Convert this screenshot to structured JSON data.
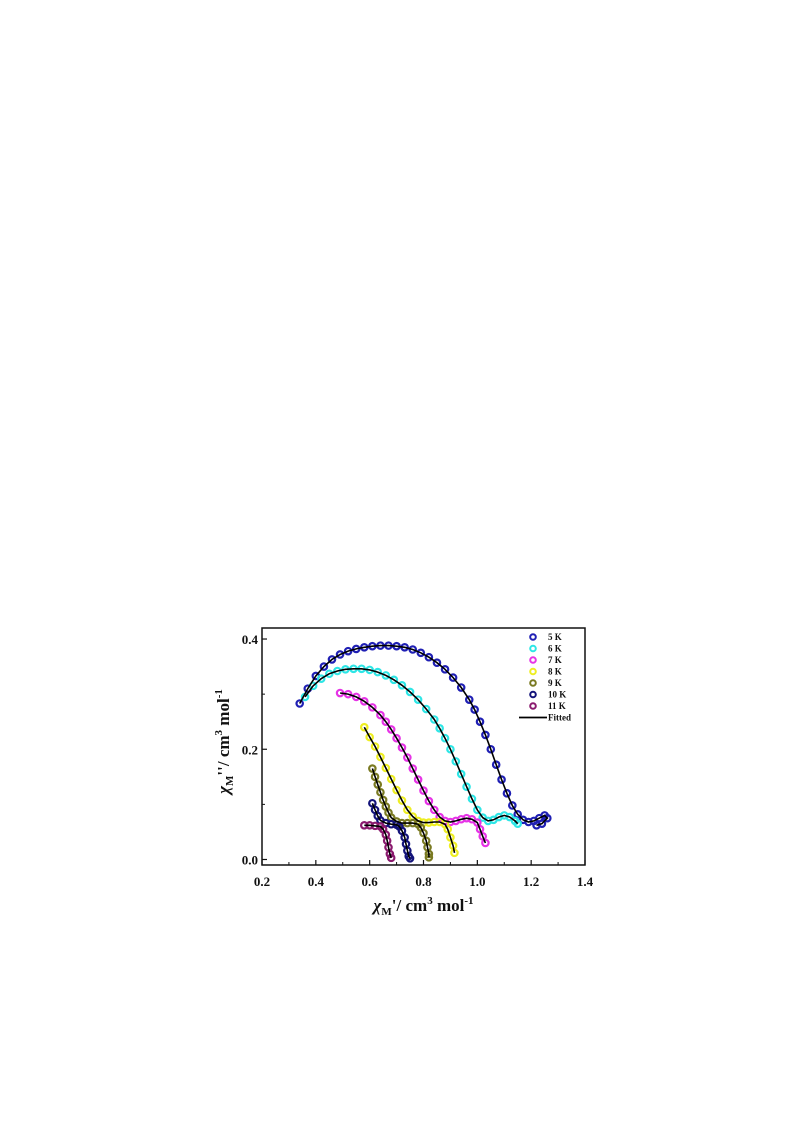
{
  "chart_data": {
    "type": "scatter",
    "xlabel": {
      "symbol": "χ",
      "sub": "M",
      "prime": "'",
      "text": "/ cm",
      "sup": "3",
      "tail": " mol",
      "sup2": "-1"
    },
    "ylabel": {
      "symbol": "χ",
      "sub": "M",
      "prime": "''",
      "text": "/ cm",
      "sup": "3",
      "tail": " mol",
      "sup2": "-1"
    },
    "xlim": [
      0.2,
      1.4
    ],
    "ylim": [
      -0.01,
      0.42
    ],
    "xticks": [
      "0.2",
      "0.4",
      "0.6",
      "0.8",
      "1.0",
      "1.2",
      "1.4"
    ],
    "yticks": [
      "0.0",
      "0.2",
      "0.4"
    ],
    "xtick_values": [
      0.2,
      0.4,
      0.6,
      0.8,
      1.0,
      1.2,
      1.4
    ],
    "ytick_values": [
      0.0,
      0.2,
      0.4
    ],
    "fit_label": "Fitted",
    "fit_color": "#000000",
    "series": [
      {
        "name": "5 K",
        "color": "#1f1fb4",
        "points": [
          [
            0.34,
            0.283
          ],
          [
            0.37,
            0.31
          ],
          [
            0.4,
            0.333
          ],
          [
            0.43,
            0.35
          ],
          [
            0.46,
            0.363
          ],
          [
            0.49,
            0.372
          ],
          [
            0.52,
            0.378
          ],
          [
            0.55,
            0.382
          ],
          [
            0.58,
            0.385
          ],
          [
            0.61,
            0.387
          ],
          [
            0.64,
            0.388
          ],
          [
            0.67,
            0.388
          ],
          [
            0.7,
            0.387
          ],
          [
            0.73,
            0.385
          ],
          [
            0.76,
            0.381
          ],
          [
            0.79,
            0.375
          ],
          [
            0.82,
            0.367
          ],
          [
            0.85,
            0.357
          ],
          [
            0.88,
            0.345
          ],
          [
            0.91,
            0.33
          ],
          [
            0.94,
            0.312
          ],
          [
            0.97,
            0.29
          ],
          [
            0.99,
            0.272
          ],
          [
            1.01,
            0.25
          ],
          [
            1.03,
            0.226
          ],
          [
            1.05,
            0.2
          ],
          [
            1.07,
            0.172
          ],
          [
            1.09,
            0.145
          ],
          [
            1.11,
            0.12
          ],
          [
            1.13,
            0.098
          ],
          [
            1.15,
            0.082
          ],
          [
            1.17,
            0.072
          ],
          [
            1.19,
            0.068
          ],
          [
            1.21,
            0.07
          ],
          [
            1.23,
            0.075
          ],
          [
            1.25,
            0.08
          ],
          [
            1.26,
            0.075
          ],
          [
            1.24,
            0.065
          ],
          [
            1.22,
            0.062
          ]
        ]
      },
      {
        "name": "6 K",
        "color": "#2ee6e6",
        "points": [
          [
            0.36,
            0.295
          ],
          [
            0.39,
            0.315
          ],
          [
            0.42,
            0.328
          ],
          [
            0.45,
            0.337
          ],
          [
            0.48,
            0.342
          ],
          [
            0.51,
            0.345
          ],
          [
            0.54,
            0.346
          ],
          [
            0.57,
            0.346
          ],
          [
            0.6,
            0.344
          ],
          [
            0.63,
            0.34
          ],
          [
            0.66,
            0.334
          ],
          [
            0.69,
            0.326
          ],
          [
            0.72,
            0.316
          ],
          [
            0.75,
            0.304
          ],
          [
            0.78,
            0.29
          ],
          [
            0.81,
            0.273
          ],
          [
            0.84,
            0.254
          ],
          [
            0.86,
            0.238
          ],
          [
            0.88,
            0.22
          ],
          [
            0.9,
            0.2
          ],
          [
            0.92,
            0.178
          ],
          [
            0.94,
            0.155
          ],
          [
            0.96,
            0.132
          ],
          [
            0.98,
            0.11
          ],
          [
            1.0,
            0.09
          ],
          [
            1.02,
            0.076
          ],
          [
            1.04,
            0.07
          ],
          [
            1.06,
            0.072
          ],
          [
            1.08,
            0.077
          ],
          [
            1.1,
            0.08
          ],
          [
            1.12,
            0.077
          ],
          [
            1.14,
            0.07
          ],
          [
            1.15,
            0.065
          ]
        ]
      },
      {
        "name": "7 K",
        "color": "#e633e6",
        "points": [
          [
            0.49,
            0.302
          ],
          [
            0.52,
            0.3
          ],
          [
            0.55,
            0.295
          ],
          [
            0.58,
            0.287
          ],
          [
            0.61,
            0.276
          ],
          [
            0.64,
            0.262
          ],
          [
            0.66,
            0.25
          ],
          [
            0.68,
            0.236
          ],
          [
            0.7,
            0.22
          ],
          [
            0.72,
            0.203
          ],
          [
            0.74,
            0.185
          ],
          [
            0.76,
            0.165
          ],
          [
            0.78,
            0.145
          ],
          [
            0.8,
            0.125
          ],
          [
            0.82,
            0.106
          ],
          [
            0.84,
            0.09
          ],
          [
            0.86,
            0.077
          ],
          [
            0.88,
            0.07
          ],
          [
            0.9,
            0.068
          ],
          [
            0.92,
            0.07
          ],
          [
            0.94,
            0.073
          ],
          [
            0.96,
            0.075
          ],
          [
            0.98,
            0.073
          ],
          [
            1.0,
            0.067
          ],
          [
            1.01,
            0.055
          ],
          [
            1.02,
            0.042
          ],
          [
            1.03,
            0.03
          ]
        ]
      },
      {
        "name": "8 K",
        "color": "#eeee22",
        "points": [
          [
            0.58,
            0.24
          ],
          [
            0.6,
            0.222
          ],
          [
            0.62,
            0.205
          ],
          [
            0.64,
            0.186
          ],
          [
            0.66,
            0.166
          ],
          [
            0.68,
            0.146
          ],
          [
            0.7,
            0.126
          ],
          [
            0.72,
            0.107
          ],
          [
            0.74,
            0.09
          ],
          [
            0.76,
            0.078
          ],
          [
            0.78,
            0.07
          ],
          [
            0.8,
            0.067
          ],
          [
            0.82,
            0.067
          ],
          [
            0.84,
            0.068
          ],
          [
            0.86,
            0.068
          ],
          [
            0.88,
            0.064
          ],
          [
            0.89,
            0.055
          ],
          [
            0.9,
            0.04
          ],
          [
            0.91,
            0.025
          ],
          [
            0.915,
            0.012
          ]
        ]
      },
      {
        "name": "9 K",
        "color": "#7a7a22",
        "points": [
          [
            0.61,
            0.165
          ],
          [
            0.62,
            0.15
          ],
          [
            0.63,
            0.136
          ],
          [
            0.64,
            0.122
          ],
          [
            0.65,
            0.108
          ],
          [
            0.66,
            0.096
          ],
          [
            0.67,
            0.085
          ],
          [
            0.68,
            0.076
          ],
          [
            0.7,
            0.069
          ],
          [
            0.72,
            0.066
          ],
          [
            0.74,
            0.066
          ],
          [
            0.76,
            0.066
          ],
          [
            0.78,
            0.064
          ],
          [
            0.79,
            0.058
          ],
          [
            0.8,
            0.048
          ],
          [
            0.81,
            0.034
          ],
          [
            0.815,
            0.022
          ],
          [
            0.82,
            0.01
          ],
          [
            0.82,
            0.004
          ]
        ]
      },
      {
        "name": "10 K",
        "color": "#13137a",
        "points": [
          [
            0.61,
            0.102
          ],
          [
            0.62,
            0.09
          ],
          [
            0.63,
            0.079
          ],
          [
            0.64,
            0.071
          ],
          [
            0.66,
            0.066
          ],
          [
            0.68,
            0.064
          ],
          [
            0.7,
            0.063
          ],
          [
            0.71,
            0.06
          ],
          [
            0.72,
            0.052
          ],
          [
            0.73,
            0.04
          ],
          [
            0.735,
            0.028
          ],
          [
            0.74,
            0.016
          ],
          [
            0.745,
            0.006
          ],
          [
            0.75,
            0.002
          ]
        ]
      },
      {
        "name": "11 K",
        "color": "#8a1a6e",
        "points": [
          [
            0.58,
            0.062
          ],
          [
            0.6,
            0.062
          ],
          [
            0.62,
            0.061
          ],
          [
            0.64,
            0.06
          ],
          [
            0.65,
            0.055
          ],
          [
            0.66,
            0.045
          ],
          [
            0.665,
            0.034
          ],
          [
            0.67,
            0.022
          ],
          [
            0.675,
            0.01
          ],
          [
            0.68,
            0.003
          ]
        ]
      }
    ]
  }
}
